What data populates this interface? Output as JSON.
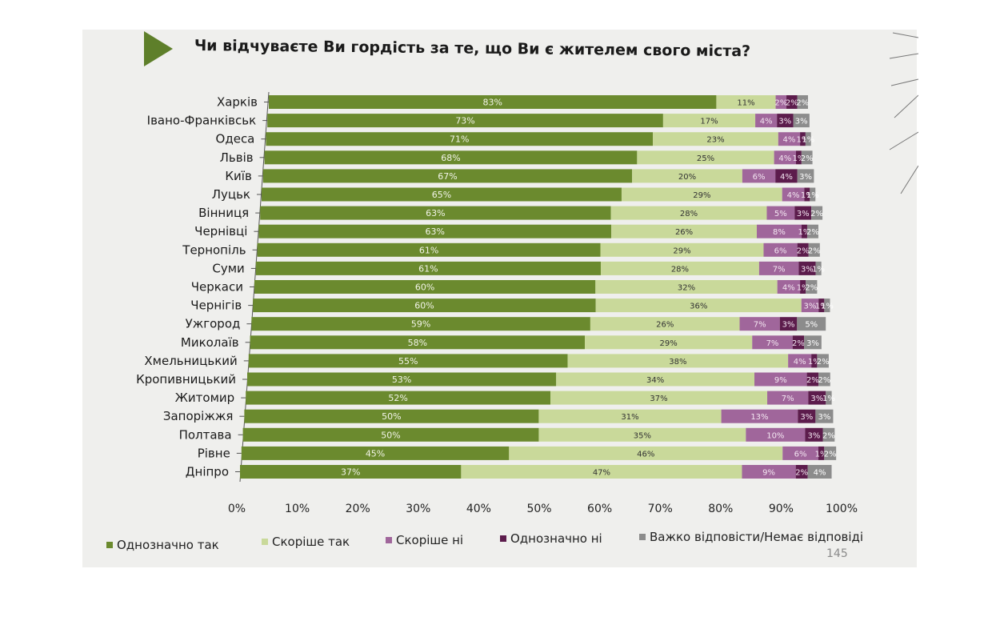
{
  "title": "Чи відчуваєте Ви гордість за те, що Ви є жителем свого міста?",
  "page_number": "145",
  "colors": {
    "definitely_yes": "#6b8a2e",
    "rather_yes": "#c9d99a",
    "rather_no": "#a0669b",
    "definitely_no": "#5c1c4c",
    "hard_to_say": "#8c8c8c"
  },
  "chart_data": {
    "type": "bar",
    "orientation": "horizontal",
    "stacked": true,
    "title": "Чи відчуваєте Ви гордість за те, що Ви є жителем свого міста?",
    "xlabel": "",
    "ylabel": "",
    "xlim": [
      0,
      100
    ],
    "x_ticks": [
      "0%",
      "10%",
      "20%",
      "30%",
      "40%",
      "50%",
      "60%",
      "70%",
      "80%",
      "90%",
      "100%"
    ],
    "legend_position": "bottom",
    "categories": [
      "Харків",
      "Івано-Франківськ",
      "Одеса",
      "Львів",
      "Київ",
      "Луцьк",
      "Вінниця",
      "Чернівці",
      "Тернопіль",
      "Суми",
      "Черкаси",
      "Чернігів",
      "Ужгород",
      "Миколаїв",
      "Хмельницький",
      "Кропивницький",
      "Житомир",
      "Запоріжжя",
      "Полтава",
      "Рівне",
      "Дніпро"
    ],
    "series": [
      {
        "name": "Однозначно так",
        "values": [
          83,
          73,
          71,
          68,
          67,
          65,
          63,
          63,
          61,
          61,
          60,
          60,
          59,
          58,
          55,
          53,
          52,
          50,
          50,
          45,
          37
        ]
      },
      {
        "name": "Скоріше так",
        "values": [
          11,
          17,
          23,
          25,
          20,
          29,
          28,
          26,
          29,
          28,
          32,
          36,
          26,
          29,
          38,
          34,
          37,
          31,
          35,
          46,
          47
        ]
      },
      {
        "name": "Скоріше ні",
        "values": [
          2,
          4,
          4,
          4,
          6,
          4,
          5,
          8,
          6,
          7,
          4,
          3,
          7,
          7,
          4,
          9,
          7,
          13,
          10,
          6,
          9
        ]
      },
      {
        "name": "Однозначно ні",
        "values": [
          2,
          3,
          1,
          1,
          4,
          1,
          3,
          1,
          2,
          3,
          1,
          1,
          3,
          2,
          1,
          2,
          3,
          3,
          3,
          1,
          2
        ]
      },
      {
        "name": "Важко відповісти/Немає відповіді",
        "values": [
          2,
          3,
          1,
          2,
          3,
          1,
          2,
          2,
          2,
          1,
          2,
          1,
          5,
          3,
          2,
          2,
          1,
          3,
          2,
          2,
          4
        ]
      }
    ],
    "value_labels": [
      [
        "83%",
        "11%",
        "2%",
        "2%",
        "2%"
      ],
      [
        "73%",
        "17%",
        "4%",
        "3%",
        "3%"
      ],
      [
        "71%",
        "23%",
        "4%",
        "1%",
        "1%"
      ],
      [
        "68%",
        "25%",
        "4%",
        "1%",
        "2%"
      ],
      [
        "67%",
        "20%",
        "6%",
        "4%",
        "3%"
      ],
      [
        "65%",
        "29%",
        "4%",
        "1%",
        "1%"
      ],
      [
        "63%",
        "28%",
        "5%",
        "3%",
        "2%"
      ],
      [
        "63%",
        "26%",
        "8%",
        "1%",
        "2%"
      ],
      [
        "61%",
        "29%",
        "6%",
        "2%",
        "2%"
      ],
      [
        "61%",
        "28%",
        "7%",
        "3%",
        "1%"
      ],
      [
        "60%",
        "32%",
        "4%",
        "1%",
        "2%"
      ],
      [
        "60%",
        "36%",
        "3%",
        "1%",
        "1%"
      ],
      [
        "59%",
        "26%",
        "7%",
        "3%",
        "5%"
      ],
      [
        "58%",
        "29%",
        "7%",
        "2%",
        "3%"
      ],
      [
        "55%",
        "38%",
        "4%",
        "1%",
        "2%"
      ],
      [
        "53%",
        "34%",
        "9%",
        "2%",
        "2%"
      ],
      [
        "52%",
        "37%",
        "7%",
        "3%",
        "1%"
      ],
      [
        "50%",
        "31%",
        "13%",
        "3%",
        "3%"
      ],
      [
        "50%",
        "35%",
        "10%",
        "3%",
        "2%"
      ],
      [
        "45%",
        "46%",
        "6%",
        "1%",
        "2%"
      ],
      [
        "37%",
        "47%",
        "9%",
        "2%",
        "4%"
      ]
    ]
  }
}
